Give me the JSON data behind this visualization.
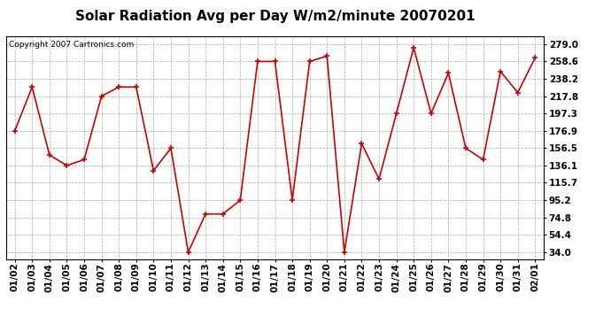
{
  "title": "Solar Radiation Avg per Day W/m2/minute 20070201",
  "copyright": "Copyright 2007 Cartronics.com",
  "dates": [
    "01/02",
    "01/03",
    "01/04",
    "01/05",
    "01/06",
    "01/07",
    "01/08",
    "01/09",
    "01/10",
    "01/11",
    "01/12",
    "01/13",
    "01/14",
    "01/15",
    "01/16",
    "01/17",
    "01/18",
    "01/19",
    "01/20",
    "01/21",
    "01/22",
    "01/23",
    "01/24",
    "01/25",
    "01/26",
    "01/27",
    "01/28",
    "01/29",
    "01/30",
    "01/31",
    "02/01"
  ],
  "values": [
    176.9,
    228.5,
    148.5,
    136.1,
    143.0,
    217.8,
    228.5,
    228.5,
    130.0,
    156.5,
    34.0,
    79.0,
    79.0,
    95.2,
    258.6,
    258.6,
    95.2,
    258.6,
    265.0,
    34.0,
    162.0,
    120.0,
    197.3,
    275.0,
    197.3,
    245.0,
    156.5,
    143.0,
    247.0,
    222.0,
    263.0
  ],
  "line_color": "#cc0000",
  "marker": "+",
  "marker_size": 5,
  "marker_linewidth": 1.2,
  "line_width": 1.2,
  "yticks": [
    34.0,
    54.4,
    74.8,
    95.2,
    115.7,
    136.1,
    156.5,
    176.9,
    197.3,
    217.8,
    238.2,
    258.6,
    279.0
  ],
  "ylim": [
    26.0,
    288.0
  ],
  "xlim": [
    -0.5,
    30.5
  ],
  "bg_color": "#ffffff",
  "plot_bg_color": "#ffffff",
  "grid_color": "#aaaaaa",
  "title_fontsize": 11,
  "copyright_fontsize": 6.5,
  "tick_fontsize": 7.5,
  "tick_fontweight": "bold"
}
